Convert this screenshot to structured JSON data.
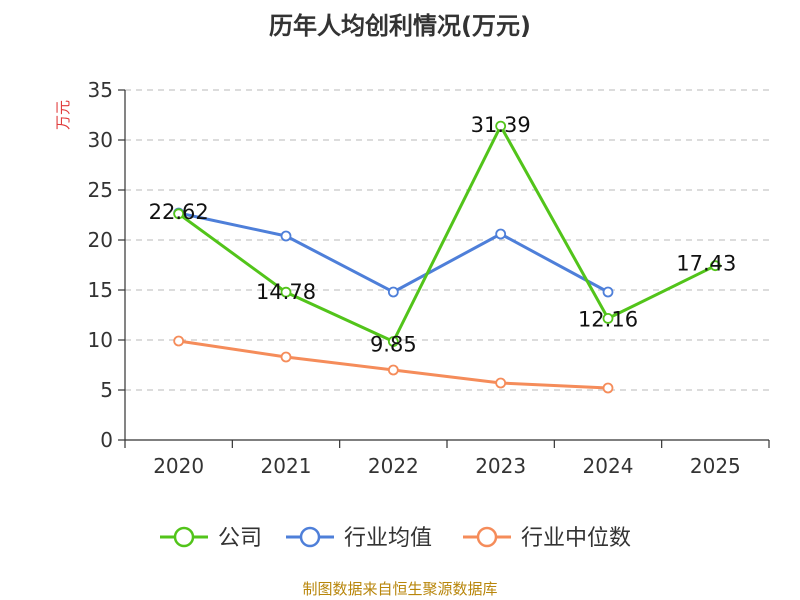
{
  "chart_data": {
    "type": "line",
    "title": "历年人均创利情况(万元)",
    "ylabel": "万元",
    "xlabel": "",
    "categories": [
      "2020",
      "2021",
      "2022",
      "2023",
      "2024",
      "2025"
    ],
    "ylim": [
      0,
      35
    ],
    "yticks": [
      0,
      5,
      10,
      15,
      20,
      25,
      30,
      35
    ],
    "grid": true,
    "legend_position": "bottom",
    "series": [
      {
        "name": "公司",
        "color": "#52c41a",
        "values": [
          22.62,
          14.78,
          9.85,
          31.39,
          12.16,
          17.43
        ],
        "labels": [
          "22.62",
          "14.78",
          "9.85",
          "31.39",
          "12.16",
          "17.43"
        ]
      },
      {
        "name": "行业均值",
        "color": "#4e7fd9",
        "values": [
          22.7,
          20.4,
          14.8,
          20.6,
          14.8,
          null
        ]
      },
      {
        "name": "行业中位数",
        "color": "#f58c5a",
        "values": [
          9.9,
          8.3,
          7.0,
          5.7,
          5.2,
          null
        ]
      }
    ]
  },
  "source_note": "制图数据来自恒生聚源数据库",
  "ylabel_color": "#e03c3c"
}
